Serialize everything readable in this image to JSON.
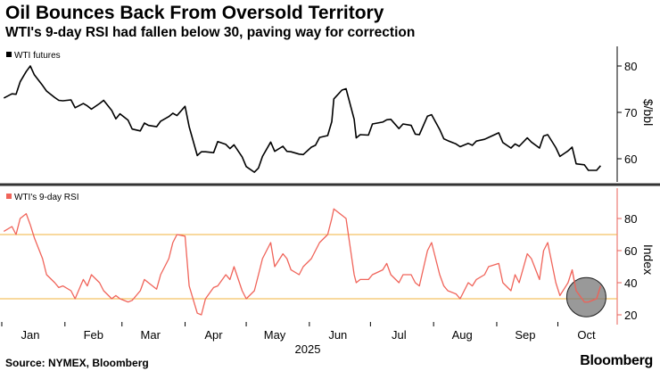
{
  "title": "Oil Bounces Back From Oversold Territory",
  "subtitle": "WTI's 9-day RSI had fallen below 30, paving way for correction",
  "source": "Source: NYMEX, Bloomberg",
  "logo": "Bloomberg",
  "colors": {
    "price_line": "#000000",
    "rsi_line": "#f0645a",
    "threshold": "#f2b33d",
    "divider": "#333333",
    "axis_red": "#e8625a",
    "highlight_circle": "#777777"
  },
  "chart_data": [
    {
      "type": "line",
      "title": "",
      "legend": "WTI futures",
      "legend_position": "top-left",
      "ylabel": "$/bbl",
      "ylim": [
        55,
        85
      ],
      "yticks": [
        60,
        70,
        80
      ],
      "grid": false,
      "series": [
        {
          "name": "WTI futures",
          "x": [
            "2025-01-02",
            "2025-01-06",
            "2025-01-08",
            "2025-01-10",
            "2025-01-13",
            "2025-01-15",
            "2025-01-17",
            "2025-01-21",
            "2025-01-23",
            "2025-01-27",
            "2025-01-29",
            "2025-01-31",
            "2025-02-04",
            "2025-02-06",
            "2025-02-10",
            "2025-02-12",
            "2025-02-14",
            "2025-02-18",
            "2025-02-20",
            "2025-02-24",
            "2025-02-26",
            "2025-02-28",
            "2025-03-04",
            "2025-03-06",
            "2025-03-10",
            "2025-03-12",
            "2025-03-14",
            "2025-03-18",
            "2025-03-20",
            "2025-03-24",
            "2025-03-26",
            "2025-03-28",
            "2025-04-01",
            "2025-04-03",
            "2025-04-07",
            "2025-04-09",
            "2025-04-11",
            "2025-04-15",
            "2025-04-17",
            "2025-04-21",
            "2025-04-23",
            "2025-04-25",
            "2025-04-29",
            "2025-05-01",
            "2025-05-05",
            "2025-05-07",
            "2025-05-09",
            "2025-05-13",
            "2025-05-15",
            "2025-05-19",
            "2025-05-21",
            "2025-05-23",
            "2025-05-27",
            "2025-05-29",
            "2025-06-02",
            "2025-06-04",
            "2025-06-06",
            "2025-06-10",
            "2025-06-12",
            "2025-06-13",
            "2025-06-17",
            "2025-06-19",
            "2025-06-23",
            "2025-06-24",
            "2025-06-26",
            "2025-06-30",
            "2025-07-02",
            "2025-07-07",
            "2025-07-09",
            "2025-07-11",
            "2025-07-15",
            "2025-07-17",
            "2025-07-21",
            "2025-07-23",
            "2025-07-25",
            "2025-07-29",
            "2025-07-31",
            "2025-08-04",
            "2025-08-06",
            "2025-08-08",
            "2025-08-12",
            "2025-08-14",
            "2025-08-18",
            "2025-08-20",
            "2025-08-22",
            "2025-08-26",
            "2025-08-28",
            "2025-09-02",
            "2025-09-04",
            "2025-09-08",
            "2025-09-10",
            "2025-09-12",
            "2025-09-16",
            "2025-09-18",
            "2025-09-22",
            "2025-09-24",
            "2025-09-26",
            "2025-09-30",
            "2025-10-02",
            "2025-10-06",
            "2025-10-08",
            "2025-10-10",
            "2025-10-14",
            "2025-10-16",
            "2025-10-20",
            "2025-10-22"
          ],
          "y": [
            73.1,
            74.0,
            73.9,
            76.6,
            78.8,
            80.0,
            78.1,
            75.8,
            74.6,
            73.2,
            72.6,
            72.5,
            72.7,
            71.0,
            71.9,
            71.4,
            70.7,
            71.9,
            72.6,
            70.4,
            68.6,
            69.7,
            68.3,
            66.4,
            66.0,
            67.7,
            67.2,
            66.9,
            68.1,
            69.1,
            69.8,
            69.3,
            71.3,
            66.9,
            60.7,
            61.5,
            61.5,
            61.3,
            63.7,
            63.1,
            62.2,
            63.0,
            60.4,
            58.3,
            57.1,
            58.0,
            60.5,
            63.6,
            61.6,
            62.7,
            61.6,
            61.5,
            61.0,
            60.9,
            62.5,
            62.9,
            64.6,
            65.0,
            68.0,
            72.9,
            74.8,
            75.1,
            68.5,
            64.5,
            65.2,
            65.1,
            67.5,
            67.9,
            68.4,
            68.5,
            66.5,
            67.5,
            67.2,
            65.3,
            65.2,
            69.2,
            69.5,
            66.3,
            64.3,
            63.9,
            63.2,
            62.6,
            63.3,
            62.9,
            63.8,
            64.2,
            64.6,
            65.6,
            63.5,
            62.3,
            63.2,
            62.7,
            64.5,
            63.6,
            62.3,
            64.9,
            65.2,
            62.4,
            60.5,
            61.7,
            62.5,
            58.9,
            58.7,
            57.5,
            57.5,
            58.5
          ]
        }
      ]
    },
    {
      "type": "line",
      "title": "",
      "legend": "WTI's 9-day RSI",
      "legend_position": "top-left",
      "ylabel": "Index",
      "ylim": [
        15,
        90
      ],
      "yticks": [
        20,
        40,
        60,
        80
      ],
      "thresholds": [
        30,
        70
      ],
      "xlabel": "2025",
      "x_ticks": [
        "Jan",
        "Feb",
        "Mar",
        "Apr",
        "May",
        "Jun",
        "Jul",
        "Aug",
        "Sep",
        "Oct"
      ],
      "grid": false,
      "series": [
        {
          "name": "WTI's 9-day RSI",
          "x": [
            "2025-01-02",
            "2025-01-06",
            "2025-01-08",
            "2025-01-10",
            "2025-01-13",
            "2025-01-15",
            "2025-01-17",
            "2025-01-21",
            "2025-01-23",
            "2025-01-27",
            "2025-01-29",
            "2025-01-31",
            "2025-02-04",
            "2025-02-06",
            "2025-02-10",
            "2025-02-12",
            "2025-02-14",
            "2025-02-18",
            "2025-02-20",
            "2025-02-24",
            "2025-02-26",
            "2025-02-28",
            "2025-03-04",
            "2025-03-06",
            "2025-03-10",
            "2025-03-12",
            "2025-03-14",
            "2025-03-18",
            "2025-03-20",
            "2025-03-24",
            "2025-03-26",
            "2025-03-28",
            "2025-04-01",
            "2025-04-03",
            "2025-04-07",
            "2025-04-09",
            "2025-04-11",
            "2025-04-15",
            "2025-04-17",
            "2025-04-21",
            "2025-04-23",
            "2025-04-25",
            "2025-04-29",
            "2025-05-01",
            "2025-05-05",
            "2025-05-07",
            "2025-05-09",
            "2025-05-13",
            "2025-05-15",
            "2025-05-19",
            "2025-05-21",
            "2025-05-23",
            "2025-05-27",
            "2025-05-29",
            "2025-06-02",
            "2025-06-04",
            "2025-06-06",
            "2025-06-10",
            "2025-06-12",
            "2025-06-13",
            "2025-06-17",
            "2025-06-19",
            "2025-06-23",
            "2025-06-24",
            "2025-06-26",
            "2025-06-30",
            "2025-07-02",
            "2025-07-07",
            "2025-07-09",
            "2025-07-11",
            "2025-07-15",
            "2025-07-17",
            "2025-07-21",
            "2025-07-23",
            "2025-07-25",
            "2025-07-29",
            "2025-07-31",
            "2025-08-04",
            "2025-08-06",
            "2025-08-08",
            "2025-08-12",
            "2025-08-14",
            "2025-08-18",
            "2025-08-20",
            "2025-08-22",
            "2025-08-26",
            "2025-08-28",
            "2025-09-02",
            "2025-09-04",
            "2025-09-08",
            "2025-09-10",
            "2025-09-12",
            "2025-09-16",
            "2025-09-18",
            "2025-09-22",
            "2025-09-24",
            "2025-09-26",
            "2025-09-30",
            "2025-10-02",
            "2025-10-06",
            "2025-10-08",
            "2025-10-10",
            "2025-10-14",
            "2025-10-16",
            "2025-10-20",
            "2025-10-22"
          ],
          "y": [
            72,
            75,
            70,
            80,
            83,
            76,
            68,
            55,
            45,
            40,
            37,
            38,
            35,
            30,
            42,
            38,
            45,
            40,
            35,
            30,
            32,
            30,
            28,
            29,
            35,
            42,
            40,
            36,
            45,
            55,
            65,
            70,
            69,
            38,
            21,
            20,
            30,
            37,
            38,
            45,
            42,
            50,
            35,
            30,
            35,
            45,
            55,
            65,
            50,
            58,
            55,
            48,
            45,
            50,
            55,
            60,
            65,
            70,
            80,
            86,
            82,
            80,
            45,
            40,
            42,
            42,
            45,
            48,
            52,
            45,
            40,
            45,
            45,
            40,
            38,
            60,
            65,
            45,
            38,
            35,
            33,
            30,
            40,
            38,
            42,
            45,
            50,
            52,
            40,
            35,
            45,
            40,
            58,
            55,
            42,
            60,
            65,
            40,
            32,
            40,
            48,
            35,
            28,
            28,
            30,
            38
          ]
        }
      ]
    }
  ]
}
